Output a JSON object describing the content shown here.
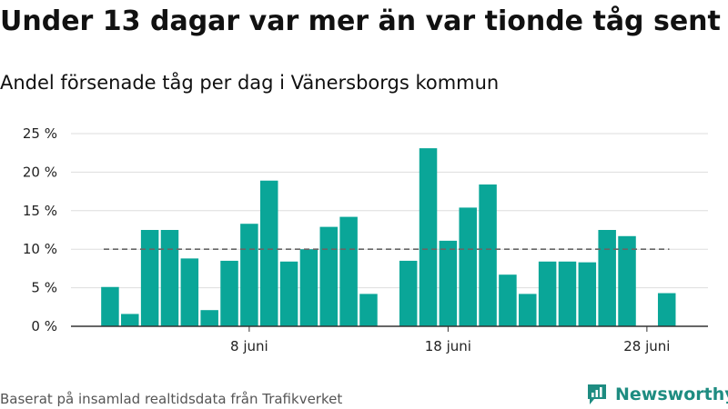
{
  "title": "Under 13 dagar var mer än var tionde tåg sent",
  "subtitle": "Andel försenade tåg per dag i Vänersborgs kommun",
  "source": "Baserat på insamlad realtidsdata från Trafikverket",
  "brand": {
    "name": "Newsworthy",
    "icon": "newsworthy-logo-icon",
    "color": "#1e8c81"
  },
  "colors": {
    "bar": "#0aa698",
    "reference_line": "#666666",
    "grid": "#dddddd",
    "axis": "#333333"
  },
  "chart_data": {
    "type": "bar",
    "title": "",
    "xlabel": "",
    "ylabel": "",
    "unit": "%",
    "x": [
      "2024-06-01",
      "2024-06-02",
      "2024-06-03",
      "2024-06-04",
      "2024-06-05",
      "2024-06-06",
      "2024-06-07",
      "2024-06-08",
      "2024-06-09",
      "2024-06-10",
      "2024-06-11",
      "2024-06-12",
      "2024-06-13",
      "2024-06-14",
      "2024-06-15",
      "2024-06-16",
      "2024-06-17",
      "2024-06-18",
      "2024-06-19",
      "2024-06-20",
      "2024-06-21",
      "2024-06-22",
      "2024-06-23",
      "2024-06-24",
      "2024-06-25",
      "2024-06-26",
      "2024-06-27",
      "2024-06-28",
      "2024-06-29",
      "2024-06-30"
    ],
    "values": [
      5.1,
      1.6,
      12.5,
      12.5,
      8.8,
      2.1,
      8.5,
      13.3,
      18.9,
      8.4,
      10.0,
      12.9,
      14.2,
      4.2,
      null,
      8.5,
      23.1,
      11.1,
      15.4,
      18.4,
      6.7,
      4.2,
      8.4,
      8.4,
      8.3,
      12.5,
      11.7,
      null,
      4.3,
      null
    ],
    "reference_line": 10,
    "ylim": [
      0,
      25
    ],
    "yticks": [
      {
        "value": 0,
        "label": "0 %"
      },
      {
        "value": 5,
        "label": "5 %"
      },
      {
        "value": 10,
        "label": "10 %"
      },
      {
        "value": 15,
        "label": "15 %"
      },
      {
        "value": 20,
        "label": "20 %"
      },
      {
        "value": 25,
        "label": "25 %"
      }
    ],
    "xticks": [
      {
        "x": "2024-06-08",
        "label": "8 juni"
      },
      {
        "x": "2024-06-18",
        "label": "18 juni"
      },
      {
        "x": "2024-06-28",
        "label": "28 juni"
      }
    ],
    "grid": true,
    "legend": "none"
  }
}
